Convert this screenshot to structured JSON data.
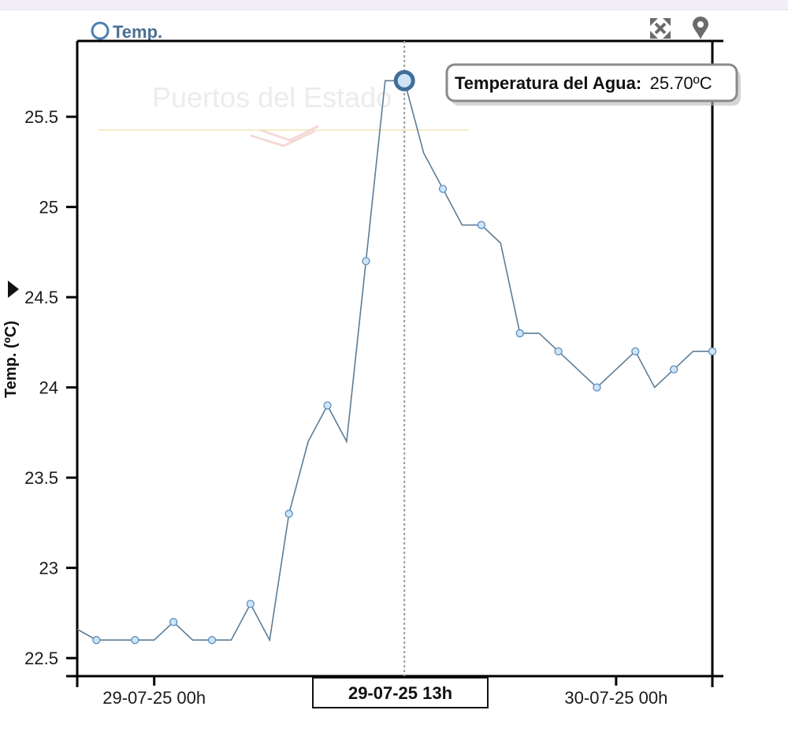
{
  "legend": {
    "label": "Temp."
  },
  "watermark": {
    "text": "Puertos del Estado"
  },
  "toolbar": {
    "fullscreen_icon": "expand-arrows-icon",
    "location_icon": "map-pin-icon"
  },
  "tooltip": {
    "key": "Temperatura del Agua:",
    "value": "25.70ºC"
  },
  "crosshair": {
    "label": "29-07-25 13h"
  },
  "colors": {
    "line": "#5b7d98",
    "marker_fill": "#cfe4f7",
    "marker_stroke": "#5b8fbd",
    "axis": "#000000"
  },
  "chart_data": {
    "type": "line",
    "title": "",
    "xlabel": "",
    "ylabel": "Temp. (ºC)",
    "ylim": [
      22.4,
      25.92
    ],
    "xlim_hours": [
      -4,
      29
    ],
    "yticks": [
      22.5,
      23,
      23.5,
      24,
      24.5,
      25,
      25.5
    ],
    "ytick_labels": [
      "22.5",
      "23",
      "23.5",
      "24",
      "24.5",
      "25",
      "25.5"
    ],
    "xticks": [
      {
        "hour": 0,
        "label": "29-07-25 00h"
      },
      {
        "hour": 24,
        "label": "30-07-25 00h"
      }
    ],
    "series": [
      {
        "name": "Temperatura del Agua",
        "x_hours": [
          -4,
          -3,
          -2,
          -1,
          0,
          1,
          2,
          3,
          4,
          5,
          6,
          7,
          8,
          9,
          10,
          11,
          12,
          13,
          14,
          15,
          16,
          17,
          18,
          19,
          20,
          21,
          22,
          23,
          24,
          25,
          26,
          27,
          28,
          29
        ],
        "values": [
          22.66,
          22.6,
          22.6,
          22.6,
          22.6,
          22.7,
          22.6,
          22.6,
          22.6,
          22.8,
          22.6,
          23.3,
          23.7,
          23.9,
          23.7,
          24.7,
          25.7,
          25.7,
          25.3,
          25.1,
          24.9,
          24.9,
          24.8,
          24.3,
          24.3,
          24.2,
          24.1,
          24.0,
          24.1,
          24.2,
          24.0,
          24.1,
          24.2,
          24.2
        ],
        "markers_at_hours": [
          -3,
          -1,
          1,
          3,
          5,
          7,
          9,
          11,
          13,
          15,
          17,
          19,
          21,
          23,
          25,
          27,
          29
        ],
        "highlight": {
          "hour": 13,
          "value": 25.7
        }
      }
    ]
  }
}
